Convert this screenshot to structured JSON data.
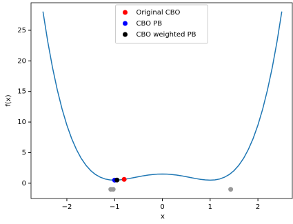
{
  "chart_data": {
    "type": "line",
    "xlabel": "x",
    "ylabel": "f(x)",
    "xlim": [
      -2.75,
      2.72
    ],
    "ylim": [
      -2.5,
      29.5
    ],
    "xticks": [
      {
        "value": -2,
        "label": "−2"
      },
      {
        "value": -1,
        "label": "−1"
      },
      0,
      1,
      2
    ],
    "yticks": [
      0,
      5,
      10,
      15,
      20,
      25
    ],
    "legend": "upper center",
    "series": [
      {
        "mode": "line",
        "color": "#1f77b4",
        "x": [
          -2.5,
          -2.4,
          -2.3,
          -2.2,
          -2.1,
          -2.0,
          -1.9,
          -1.8,
          -1.7,
          -1.6,
          -1.5,
          -1.4,
          -1.3,
          -1.2,
          -1.1,
          -1.0,
          -0.9,
          -0.8,
          -0.7,
          -0.6,
          -0.5,
          -0.4,
          -0.3,
          -0.2,
          -0.1,
          0,
          0.1,
          0.2,
          0.3,
          0.4,
          0.5,
          0.6,
          0.7,
          0.8,
          0.9,
          1.0,
          1.1,
          1.2,
          1.3,
          1.4,
          1.5,
          1.6,
          1.7,
          1.8,
          1.9,
          2.0,
          2.1,
          2.2,
          2.3,
          2.4,
          2.5
        ],
        "values": [
          28.06,
          23.16,
          18.9,
          15.25,
          12.13,
          9.5,
          7.31,
          5.52,
          4.07,
          2.93,
          2.06,
          1.42,
          0.98,
          0.69,
          0.54,
          0.5,
          0.54,
          0.63,
          0.76,
          0.91,
          1.06,
          1.21,
          1.33,
          1.42,
          1.48,
          1.5,
          1.48,
          1.42,
          1.33,
          1.21,
          1.06,
          0.91,
          0.76,
          0.63,
          0.54,
          0.5,
          0.54,
          0.69,
          0.98,
          1.42,
          2.06,
          2.93,
          4.07,
          5.52,
          7.31,
          9.5,
          12.13,
          15.25,
          18.9,
          23.16,
          28.06
        ]
      },
      {
        "mode": "points",
        "color": "#999999",
        "x": [
          -1.08,
          -1.03,
          1.43
        ],
        "values": [
          -1.0,
          -1.0,
          -1.0
        ]
      },
      {
        "mode": "points",
        "name": "Original CBO",
        "color": "#ff0000",
        "x": [
          -0.8
        ],
        "values": [
          0.63
        ]
      },
      {
        "mode": "points",
        "name": "CBO PB",
        "color": "#0000ff",
        "x": [
          -1.0
        ],
        "values": [
          0.5
        ]
      },
      {
        "mode": "points",
        "name": "CBO weighted PB",
        "color": "#000000",
        "x": [
          -0.95
        ],
        "values": [
          0.52
        ]
      }
    ]
  }
}
